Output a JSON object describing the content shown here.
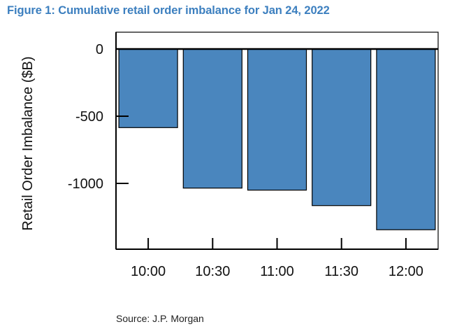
{
  "figure": {
    "title": "Figure 1: Cumulative retail order imbalance for Jan 24, 2022",
    "source": "Source: J.P. Morgan"
  },
  "chart_data": {
    "type": "bar",
    "title": "",
    "xlabel": "",
    "ylabel": "Retail Order Imbalance ($B)",
    "categories": [
      "10:00",
      "10:30",
      "11:00",
      "11:30",
      "12:00"
    ],
    "values": [
      -585,
      -1035,
      -1050,
      -1165,
      -1345
    ],
    "ylim": [
      -1500,
      0
    ],
    "yticks": [
      0,
      -500,
      -1000
    ],
    "ytick_labels": [
      "0",
      "-500",
      "-1000"
    ],
    "grid": false,
    "legend": "none",
    "bar_color": "#4a86be",
    "title_color": "#3c7fbf"
  }
}
